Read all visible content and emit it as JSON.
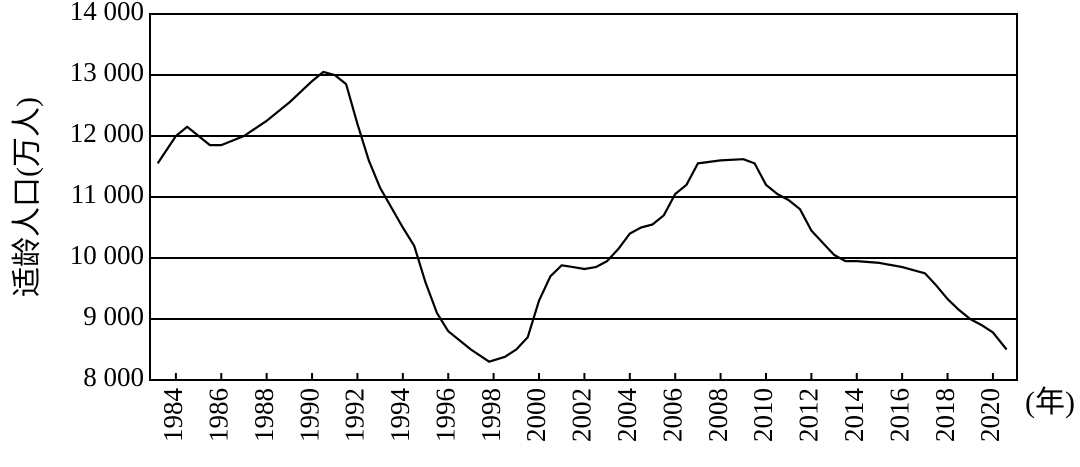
{
  "chart_data": {
    "type": "line",
    "y_label": "适龄人口(万人)",
    "x_label": "(年)",
    "x": [
      1983.2,
      1984,
      1984.5,
      1985,
      1985.5,
      1986,
      1987,
      1988,
      1989,
      1990,
      1990.5,
      1991,
      1991.5,
      1992,
      1992.5,
      1993,
      1994,
      1994.5,
      1995,
      1995.5,
      1996,
      1997,
      1997.8,
      1998.5,
      1999,
      1999.5,
      2000,
      2000.5,
      2001,
      2001.5,
      2002,
      2002.5,
      2003,
      2003.5,
      2004,
      2004.5,
      2005,
      2005.5,
      2006,
      2006.5,
      2007,
      2008,
      2009,
      2009.5,
      2010,
      2010.5,
      2011,
      2011.5,
      2012,
      2012.5,
      2013,
      2013.5,
      2014,
      2015,
      2016,
      2017,
      2017.5,
      2018,
      2018.5,
      2019,
      2019.5,
      2020,
      2020.6
    ],
    "series": [
      {
        "color": "#000000",
        "values": [
          11550,
          12000,
          12150,
          12000,
          11850,
          11850,
          12000,
          12250,
          12550,
          12900,
          13050,
          13000,
          12850,
          12200,
          11600,
          11150,
          10500,
          10200,
          9600,
          9100,
          8800,
          8500,
          8300,
          8380,
          8500,
          8700,
          9300,
          9700,
          9880,
          9850,
          9820,
          9850,
          9950,
          10150,
          10400,
          10500,
          10550,
          10700,
          11050,
          11200,
          11550,
          11600,
          11620,
          11550,
          11200,
          11050,
          10950,
          10800,
          10450,
          10250,
          10050,
          9950,
          9950,
          9920,
          9850,
          9750,
          9550,
          9330,
          9150,
          9000,
          8900,
          8780,
          8500
        ]
      }
    ],
    "xlim": [
      1982.86,
      2021.06
    ],
    "xticks": [
      1984,
      1986,
      1988,
      1990,
      1992,
      1994,
      1996,
      1998,
      2000,
      2002,
      2004,
      2006,
      2008,
      2010,
      2012,
      2014,
      2016,
      2018,
      2020
    ],
    "ylim": [
      8000,
      14000
    ],
    "yticks": [
      {
        "value": 8000,
        "label": "8 000"
      },
      {
        "value": 9000,
        "label": "9 000"
      },
      {
        "value": 10000,
        "label": "10 000"
      },
      {
        "value": 11000,
        "label": "11 000"
      },
      {
        "value": 12000,
        "label": "12 000"
      },
      {
        "value": 13000,
        "label": "13 000"
      },
      {
        "value": 14000,
        "label": "14 000"
      }
    ],
    "grid": true
  }
}
